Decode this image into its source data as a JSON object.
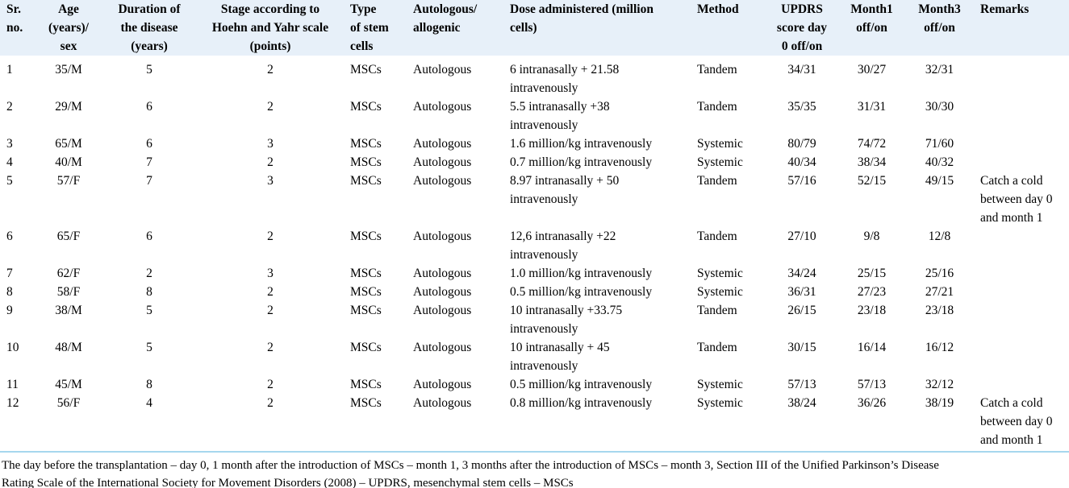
{
  "colors": {
    "header_background": "#e7f0f9",
    "footnote_rule": "#a6d7ee",
    "text": "#000000"
  },
  "table": {
    "columns": [
      {
        "label": "Sr.\nno.",
        "align": "left"
      },
      {
        "label": "Age\n(years)/\nsex",
        "align": "center"
      },
      {
        "label": "Duration of\nthe disease\n(years)",
        "align": "center"
      },
      {
        "label": "Stage according to\nHoehn and Yahr scale\n(points)",
        "align": "center"
      },
      {
        "label": "Type\nof stem\ncells",
        "align": "left"
      },
      {
        "label": "Autologous/\nallogenic",
        "align": "left"
      },
      {
        "label": "Dose administered (million\ncells)",
        "align": "left"
      },
      {
        "label": "Method",
        "align": "left"
      },
      {
        "label": "UPDRS\nscore day\n0 off/on",
        "align": "center"
      },
      {
        "label": "Month1\noff/on",
        "align": "center"
      },
      {
        "label": "Month3\noff/on",
        "align": "center"
      },
      {
        "label": "Remarks",
        "align": "left"
      }
    ],
    "rows": [
      {
        "cells": [
          "1",
          "35/M",
          "5",
          "2",
          "MSCs",
          "Autologous",
          "6 intranasally + 21.58\nintravenously",
          "Tandem",
          "34/31",
          "30/27",
          "32/31",
          ""
        ]
      },
      {
        "cells": [
          "2",
          "29/M",
          "6",
          "2",
          "MSCs",
          "Autologous",
          "5.5 intranasally +38\nintravenously",
          "Tandem",
          "35/35",
          "31/31",
          "30/30",
          ""
        ]
      },
      {
        "cells": [
          "3",
          "65/M",
          "6",
          "3",
          "MSCs",
          "Autologous",
          "1.6 million/kg intravenously",
          "Systemic",
          "80/79",
          "74/72",
          "71/60",
          ""
        ]
      },
      {
        "cells": [
          "4",
          "40/M",
          "7",
          "2",
          "MSCs",
          "Autologous",
          "0.7 million/kg intravenously",
          "Systemic",
          "40/34",
          "38/34",
          "40/32",
          ""
        ]
      },
      {
        "cells": [
          "5",
          "57/F",
          "7",
          "3",
          "MSCs",
          "Autologous",
          "8.97 intranasally + 50\nintravenously",
          "Tandem",
          "57/16",
          "52/15",
          "49/15",
          "Catch a cold\nbetween day 0\nand month 1"
        ]
      },
      {
        "cells": [
          "6",
          "65/F",
          "6",
          "2",
          "MSCs",
          "Autologous",
          "12,6 intranasally +22\nintravenously",
          "Tandem",
          "27/10",
          "9/8",
          "12/8",
          ""
        ]
      },
      {
        "cells": [
          "7",
          "62/F",
          "2",
          "3",
          "MSCs",
          "Autologous",
          "1.0 million/kg intravenously",
          "Systemic",
          "34/24",
          "25/15",
          "25/16",
          ""
        ]
      },
      {
        "cells": [
          "8",
          "58/F",
          "8",
          "2",
          "MSCs",
          "Autologous",
          "0.5 million/kg intravenously",
          "Systemic",
          "36/31",
          "27/23",
          "27/21",
          ""
        ]
      },
      {
        "cells": [
          "9",
          "38/M",
          "5",
          "2",
          "MSCs",
          "Autologous",
          "10 intranasally +33.75\nintravenously",
          "Tandem",
          "26/15",
          "23/18",
          "23/18",
          ""
        ]
      },
      {
        "cells": [
          "10",
          "48/M",
          "5",
          "2",
          "MSCs",
          "Autologous",
          "10 intranasally + 45\nintravenously",
          "Tandem",
          "30/15",
          "16/14",
          "16/12",
          ""
        ]
      },
      {
        "cells": [
          "11",
          "45/M",
          "8",
          "2",
          "MSCs",
          "Autologous",
          "0.5 million/kg intravenously",
          "Systemic",
          "57/13",
          "57/13",
          "32/12",
          ""
        ]
      },
      {
        "cells": [
          "12",
          "56/F",
          "4",
          "2",
          "MSCs",
          "Autologous",
          "0.8 million/kg intravenously",
          "Systemic",
          "38/24",
          "36/26",
          "38/19",
          "Catch a cold\nbetween day 0\nand month 1"
        ]
      }
    ]
  },
  "footnote": "The day before the transplantation – day 0, 1 month after the introduction of MSCs – month 1, 3 months after the introduction of MSCs – month 3, Section III of the Unified Parkinson’s Disease\nRating Scale of the International Society for Movement Disorders (2008) – UPDRS, mesenchymal stem cells – MSCs"
}
